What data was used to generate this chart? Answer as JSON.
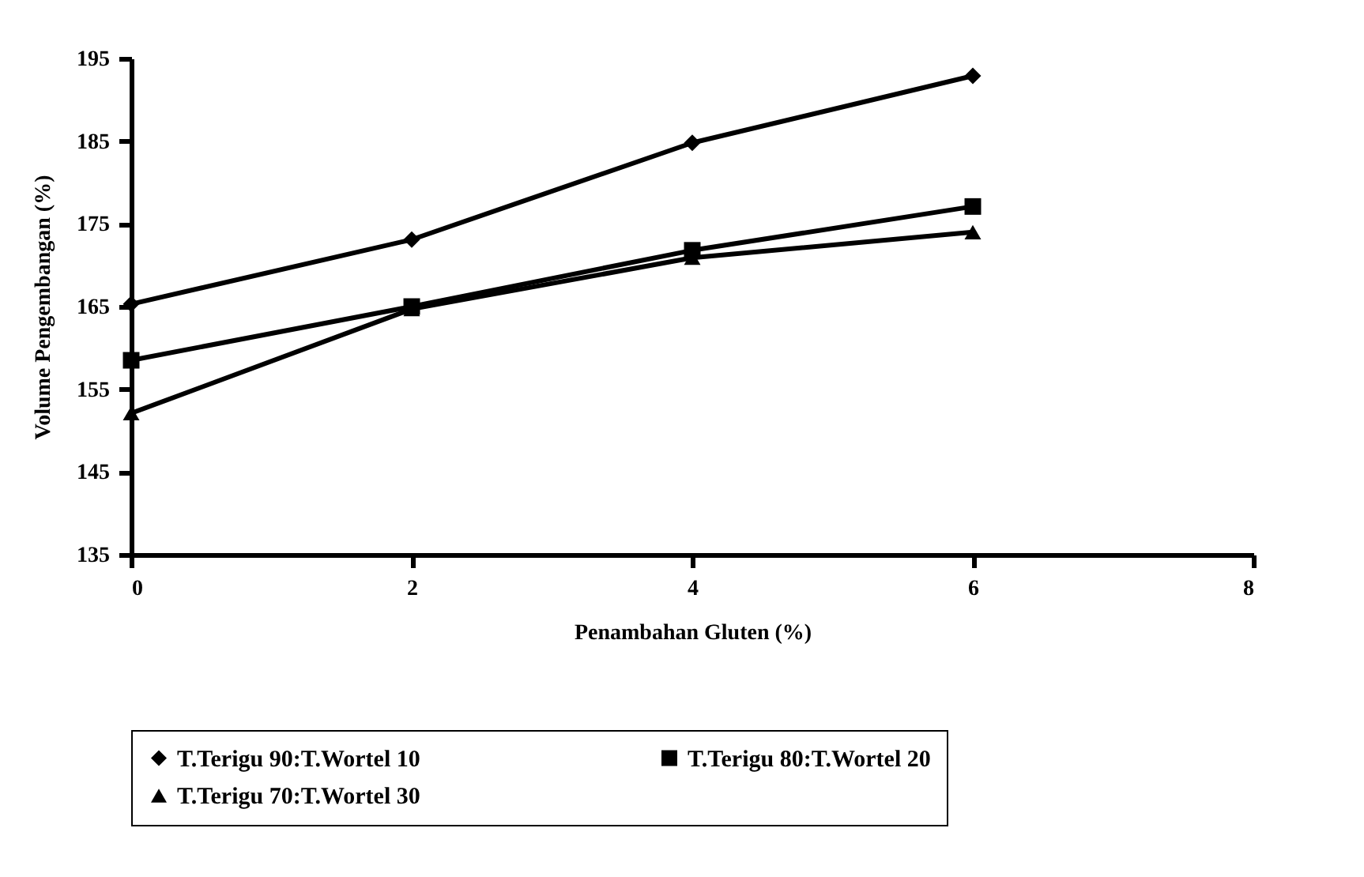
{
  "chart_data": {
    "type": "line",
    "xlabel": "Penambahan Gluten (%)",
    "ylabel": "Volume Pengembangan (%)",
    "x": [
      0,
      2,
      4,
      6
    ],
    "xlim": [
      0,
      8
    ],
    "xticks": [
      0,
      2,
      4,
      6,
      8
    ],
    "ylim": [
      135,
      195
    ],
    "yticks": [
      135,
      145,
      155,
      165,
      175,
      185,
      195
    ],
    "grid": false,
    "legend": "bottom",
    "line_style": "solid",
    "series": [
      {
        "name": "T.Terigu 90:T.Wortel 10",
        "color": "#000000",
        "marker": "diamond",
        "values": [
          165.3,
          173.1,
          184.8,
          192.9
        ]
      },
      {
        "name": "T.Terigu 80:T.Wortel 20",
        "color": "#000000",
        "marker": "square",
        "values": [
          158.5,
          165.0,
          171.8,
          177.1
        ]
      },
      {
        "name": "T.Terigu 70:T.Wortel 30",
        "color": "#000000",
        "marker": "triangle",
        "values": [
          152.1,
          164.7,
          170.9,
          174.0
        ]
      }
    ]
  }
}
